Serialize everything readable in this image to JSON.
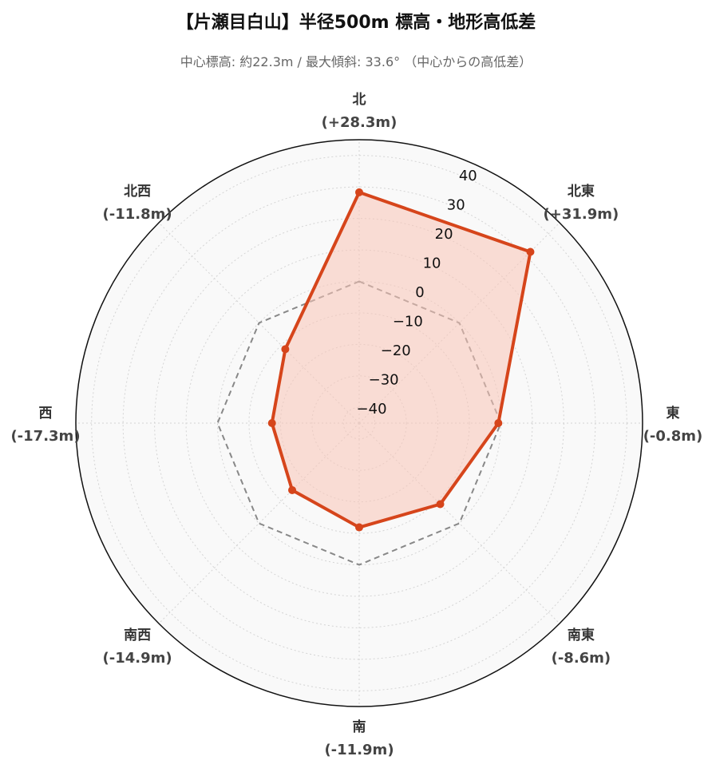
{
  "chart_data": {
    "type": "radar",
    "title": "【片瀬目白山】半径500m 標高・地形高低差",
    "subtitle": "中心標高: 約22.3m / 最大傾斜: 33.6° （中心からの高低差）",
    "directions": [
      "北",
      "北東",
      "東",
      "南東",
      "南",
      "南西",
      "西",
      "北西"
    ],
    "direction_value_labels": [
      "(+28.3m)",
      "(+31.9m)",
      "(-0.8m)",
      "(-8.6m)",
      "(-11.9m)",
      "(-14.9m)",
      "(-17.3m)",
      "(-11.8m)"
    ],
    "series": [
      {
        "values": [
          28.3,
          31.9,
          -0.8,
          -8.6,
          -11.9,
          -14.9,
          -17.3,
          -11.8
        ],
        "color": "#d6451b",
        "fill": "#f9c4b6"
      },
      {
        "values": [
          0,
          0,
          0,
          0,
          0,
          0,
          0,
          0
        ],
        "color": "#888888",
        "style": "dashed"
      }
    ],
    "radial_ticks": [
      40,
      30,
      20,
      10,
      0,
      -10,
      -20,
      -30,
      -40
    ],
    "rlim": [
      -45,
      45
    ],
    "grid": true,
    "background": "#f9f9f9"
  }
}
